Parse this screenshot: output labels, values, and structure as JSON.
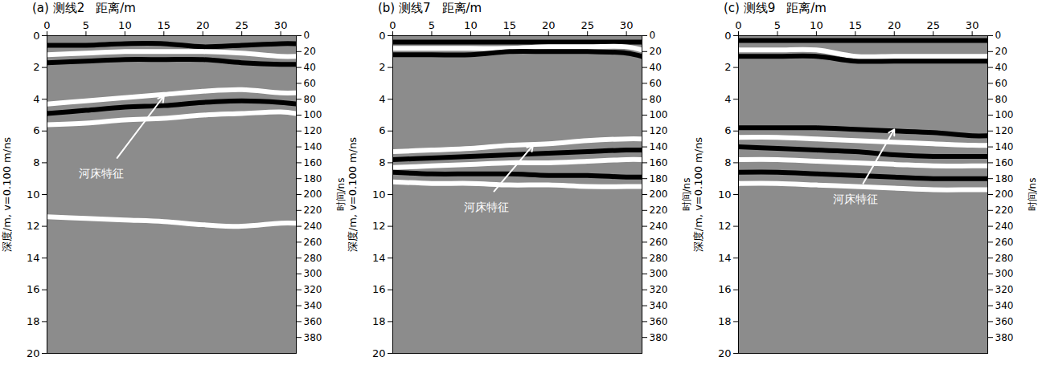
{
  "chart_data": [
    {
      "type": "line",
      "title": "(a) 测线2",
      "xlabel": "距离/m",
      "ylabel": "深度/m, v=0.100 m/ns",
      "y2label": "时间/ns",
      "xlim": [
        0,
        32
      ],
      "xticks": [
        0,
        5,
        10,
        15,
        20,
        25,
        30
      ],
      "ylim": [
        0,
        20
      ],
      "yticks": [
        0,
        2,
        4,
        6,
        8,
        10,
        12,
        14,
        16,
        18,
        20
      ],
      "y2lim": [
        0,
        400
      ],
      "y2ticks": [
        0,
        20,
        40,
        60,
        80,
        100,
        120,
        140,
        160,
        180,
        200,
        220,
        240,
        260,
        280,
        300,
        320,
        340,
        360,
        380
      ],
      "x": [
        0,
        5,
        10,
        15,
        20,
        25,
        30,
        32
      ],
      "series": [
        {
          "color": "#000000",
          "values": [
            0.6,
            0.6,
            0.5,
            0.5,
            0.7,
            0.6,
            0.5,
            0.5
          ]
        },
        {
          "color": "#ffffff",
          "values": [
            1.2,
            1.1,
            1.0,
            1.0,
            1.0,
            1.1,
            1.3,
            1.3
          ]
        },
        {
          "color": "#000000",
          "values": [
            1.7,
            1.6,
            1.5,
            1.5,
            1.5,
            1.7,
            1.8,
            1.8
          ]
        },
        {
          "color": "#ffffff",
          "values": [
            4.3,
            4.1,
            3.9,
            3.7,
            3.5,
            3.4,
            3.6,
            3.6
          ]
        },
        {
          "color": "#000000",
          "values": [
            4.9,
            4.7,
            4.5,
            4.4,
            4.2,
            4.1,
            4.2,
            4.3
          ]
        },
        {
          "color": "#ffffff",
          "values": [
            5.6,
            5.5,
            5.3,
            5.2,
            5.0,
            4.9,
            4.8,
            4.9
          ]
        },
        {
          "color": "#ffffff",
          "values": [
            11.4,
            11.5,
            11.6,
            11.7,
            11.9,
            12.0,
            11.8,
            11.8
          ]
        }
      ],
      "annotations": [
        {
          "text": "河床特征",
          "x": 7,
          "y": 8.7,
          "arrow_from": [
            9,
            7.7
          ],
          "arrow_to": [
            15,
            3.8
          ]
        }
      ]
    },
    {
      "type": "line",
      "title": "(b) 测线7",
      "xlabel": "距离/m",
      "ylabel": "深度/m, v=0.100 m/ns",
      "y2label": "时间/ns",
      "xlim": [
        0,
        32
      ],
      "xticks": [
        0,
        5,
        10,
        15,
        20,
        25,
        30
      ],
      "ylim": [
        0,
        20
      ],
      "yticks": [
        0,
        2,
        4,
        6,
        8,
        10,
        12,
        14,
        16,
        18,
        20
      ],
      "y2lim": [
        0,
        400
      ],
      "y2ticks": [
        0,
        20,
        40,
        60,
        80,
        100,
        120,
        140,
        160,
        180,
        200,
        220,
        240,
        260,
        280,
        300,
        320,
        340,
        360,
        380
      ],
      "x": [
        0,
        5,
        10,
        15,
        20,
        25,
        30,
        32
      ],
      "series": [
        {
          "color": "#000000",
          "values": [
            0.4,
            0.4,
            0.4,
            0.4,
            0.4,
            0.4,
            0.4,
            0.4
          ]
        },
        {
          "color": "#ffffff",
          "values": [
            0.8,
            0.8,
            0.8,
            0.8,
            0.7,
            0.7,
            0.7,
            0.9
          ]
        },
        {
          "color": "#000000",
          "values": [
            1.2,
            1.2,
            1.2,
            1.0,
            1.0,
            1.0,
            1.1,
            1.3
          ]
        },
        {
          "color": "#ffffff",
          "values": [
            7.3,
            7.2,
            7.1,
            6.9,
            6.8,
            6.6,
            6.5,
            6.5
          ]
        },
        {
          "color": "#000000",
          "values": [
            7.8,
            7.7,
            7.6,
            7.5,
            7.4,
            7.3,
            7.2,
            7.2
          ]
        },
        {
          "color": "#ffffff",
          "values": [
            8.3,
            8.2,
            8.1,
            8.0,
            8.0,
            7.9,
            7.8,
            7.8
          ]
        },
        {
          "color": "#000000",
          "values": [
            8.6,
            8.7,
            8.7,
            8.7,
            8.8,
            8.8,
            8.9,
            8.9
          ]
        },
        {
          "color": "#ffffff",
          "values": [
            9.2,
            9.3,
            9.3,
            9.4,
            9.4,
            9.5,
            9.5,
            9.5
          ]
        }
      ],
      "annotations": [
        {
          "text": "河床特征",
          "x": 12,
          "y": 10.8,
          "arrow_from": [
            13,
            9.8
          ],
          "arrow_to": [
            18,
            6.9
          ]
        }
      ]
    },
    {
      "type": "line",
      "title": "(c) 测线9",
      "xlabel": "距离/m",
      "ylabel": "深度/m, v=0.100 m/ns",
      "y2label": "时间/ns",
      "xlim": [
        0,
        32
      ],
      "xticks": [
        0,
        5,
        10,
        15,
        20,
        25,
        30
      ],
      "ylim": [
        0,
        20
      ],
      "yticks": [
        0,
        2,
        4,
        6,
        8,
        10,
        12,
        14,
        16,
        18,
        20
      ],
      "y2lim": [
        0,
        400
      ],
      "y2ticks": [
        0,
        20,
        40,
        60,
        80,
        100,
        120,
        140,
        160,
        180,
        200,
        220,
        240,
        260,
        280,
        300,
        320,
        340,
        360,
        380
      ],
      "x": [
        0,
        5,
        10,
        15,
        20,
        25,
        30,
        32
      ],
      "series": [
        {
          "color": "#000000",
          "values": [
            0.3,
            0.3,
            0.3,
            0.3,
            0.3,
            0.3,
            0.3,
            0.3
          ]
        },
        {
          "color": "#ffffff",
          "values": [
            0.9,
            0.9,
            0.9,
            1.3,
            1.3,
            1.3,
            1.3,
            1.3
          ]
        },
        {
          "color": "#000000",
          "values": [
            1.3,
            1.3,
            1.3,
            1.6,
            1.6,
            1.6,
            1.6,
            1.6
          ]
        },
        {
          "color": "#000000",
          "values": [
            5.8,
            5.8,
            5.8,
            5.9,
            6.0,
            6.1,
            6.3,
            6.3
          ]
        },
        {
          "color": "#ffffff",
          "values": [
            6.4,
            6.4,
            6.5,
            6.6,
            6.7,
            6.8,
            6.9,
            6.9
          ]
        },
        {
          "color": "#000000",
          "values": [
            7.0,
            7.1,
            7.2,
            7.3,
            7.5,
            7.6,
            7.6,
            7.6
          ]
        },
        {
          "color": "#ffffff",
          "values": [
            7.8,
            7.8,
            7.9,
            8.0,
            8.1,
            8.2,
            8.2,
            8.2
          ]
        },
        {
          "color": "#000000",
          "values": [
            8.6,
            8.6,
            8.7,
            8.8,
            8.9,
            9.0,
            9.0,
            9.0
          ]
        },
        {
          "color": "#ffffff",
          "values": [
            9.3,
            9.3,
            9.4,
            9.5,
            9.6,
            9.7,
            9.7,
            9.7
          ]
        }
      ],
      "annotations": [
        {
          "text": "河床特征",
          "x": 15,
          "y": 10.3,
          "arrow_from": [
            16,
            9.3
          ],
          "arrow_to": [
            20,
            5.9
          ]
        }
      ]
    }
  ]
}
